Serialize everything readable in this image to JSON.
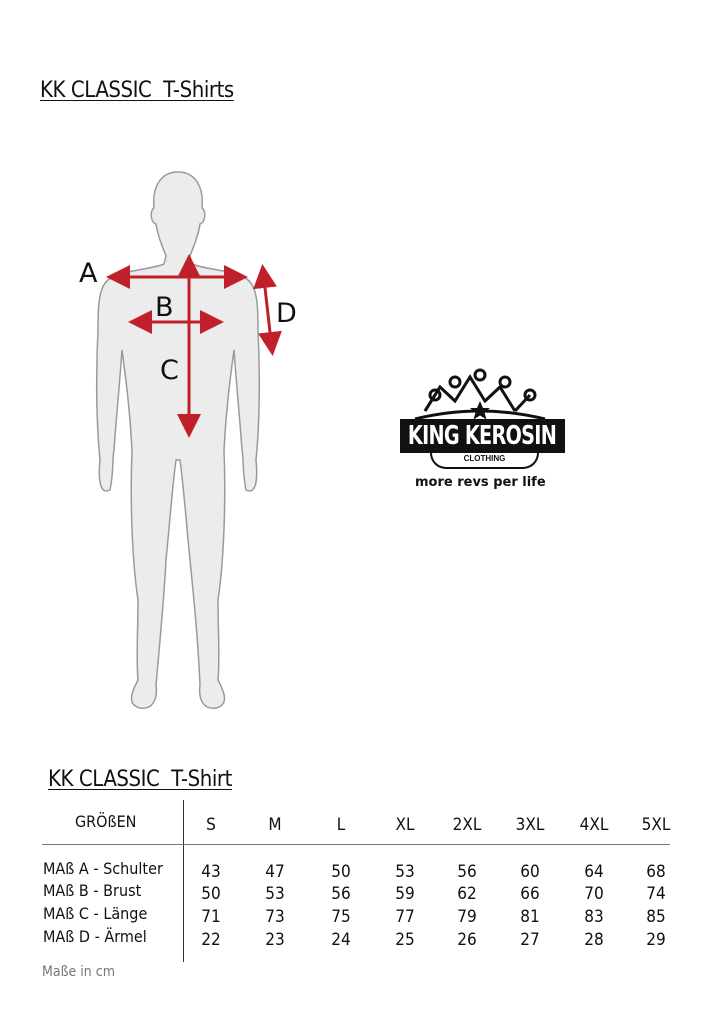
{
  "page_title": "KK CLASSIC  T-Shirts",
  "diagram": {
    "labels": {
      "a": "A",
      "b": "B",
      "c": "C",
      "d": "D"
    },
    "arrow_color": "#c0202a"
  },
  "logo": {
    "brand": "KING KEROSIN",
    "sub": "CLOTHING",
    "tagline": "more revs per life"
  },
  "table": {
    "title": "KK CLASSIC  T-Shirt",
    "header_label": "GRÖßEN",
    "sizes": [
      "S",
      "M",
      "L",
      "XL",
      "2XL",
      "3XL",
      "4XL",
      "5XL"
    ],
    "rows": [
      {
        "label": "MAß A - Schulter",
        "values": [
          "43",
          "47",
          "50",
          "53",
          "56",
          "60",
          "64",
          "68"
        ]
      },
      {
        "label": "MAß B - Brust",
        "values": [
          "50",
          "53",
          "56",
          "59",
          "62",
          "66",
          "70",
          "74"
        ]
      },
      {
        "label": "MAß C - Länge",
        "values": [
          "71",
          "73",
          "75",
          "77",
          "79",
          "81",
          "83",
          "85"
        ]
      },
      {
        "label": "MAß D - Ärmel",
        "values": [
          "22",
          "23",
          "24",
          "25",
          "26",
          "27",
          "28",
          "29"
        ]
      }
    ],
    "footnote": "Maße in cm"
  }
}
